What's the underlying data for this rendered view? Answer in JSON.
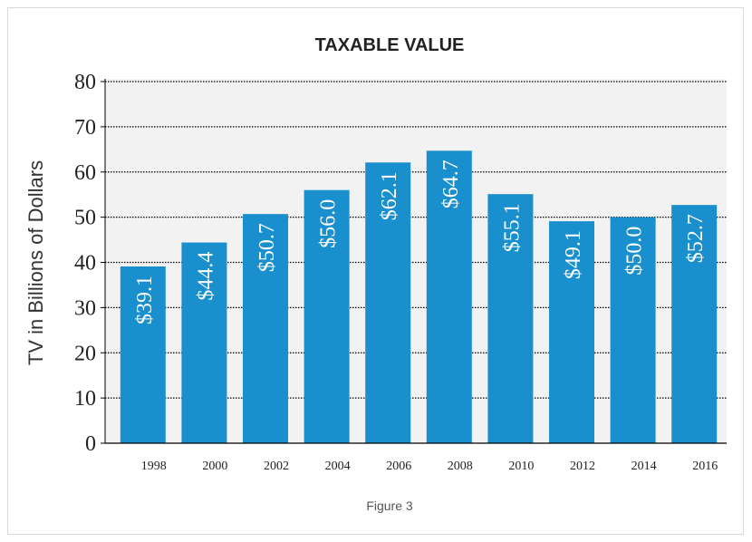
{
  "chart_data": {
    "type": "bar",
    "title": "TAXABLE VALUE",
    "ylabel": "TV in Billions of Dollars",
    "xlabel": "",
    "categories": [
      "1998",
      "2000",
      "2002",
      "2004",
      "2006",
      "2008",
      "2010",
      "2012",
      "2014",
      "2016"
    ],
    "values": [
      39.1,
      44.4,
      50.7,
      56.0,
      62.1,
      64.7,
      55.1,
      49.1,
      50.0,
      52.7
    ],
    "data_labels": [
      "$39.1",
      "$44.4",
      "$50.7",
      "$56.0",
      "$62.1",
      "$64.7",
      "$55.1",
      "$49.1",
      "$50.0",
      "$52.7"
    ],
    "ylim": [
      0,
      80
    ],
    "yticks": [
      0,
      10,
      20,
      30,
      40,
      50,
      60,
      70,
      80
    ],
    "grid": true,
    "legend": "none",
    "bar_color": "#1a8fce",
    "background": "#f2f2f2"
  },
  "caption": "Figure 3"
}
